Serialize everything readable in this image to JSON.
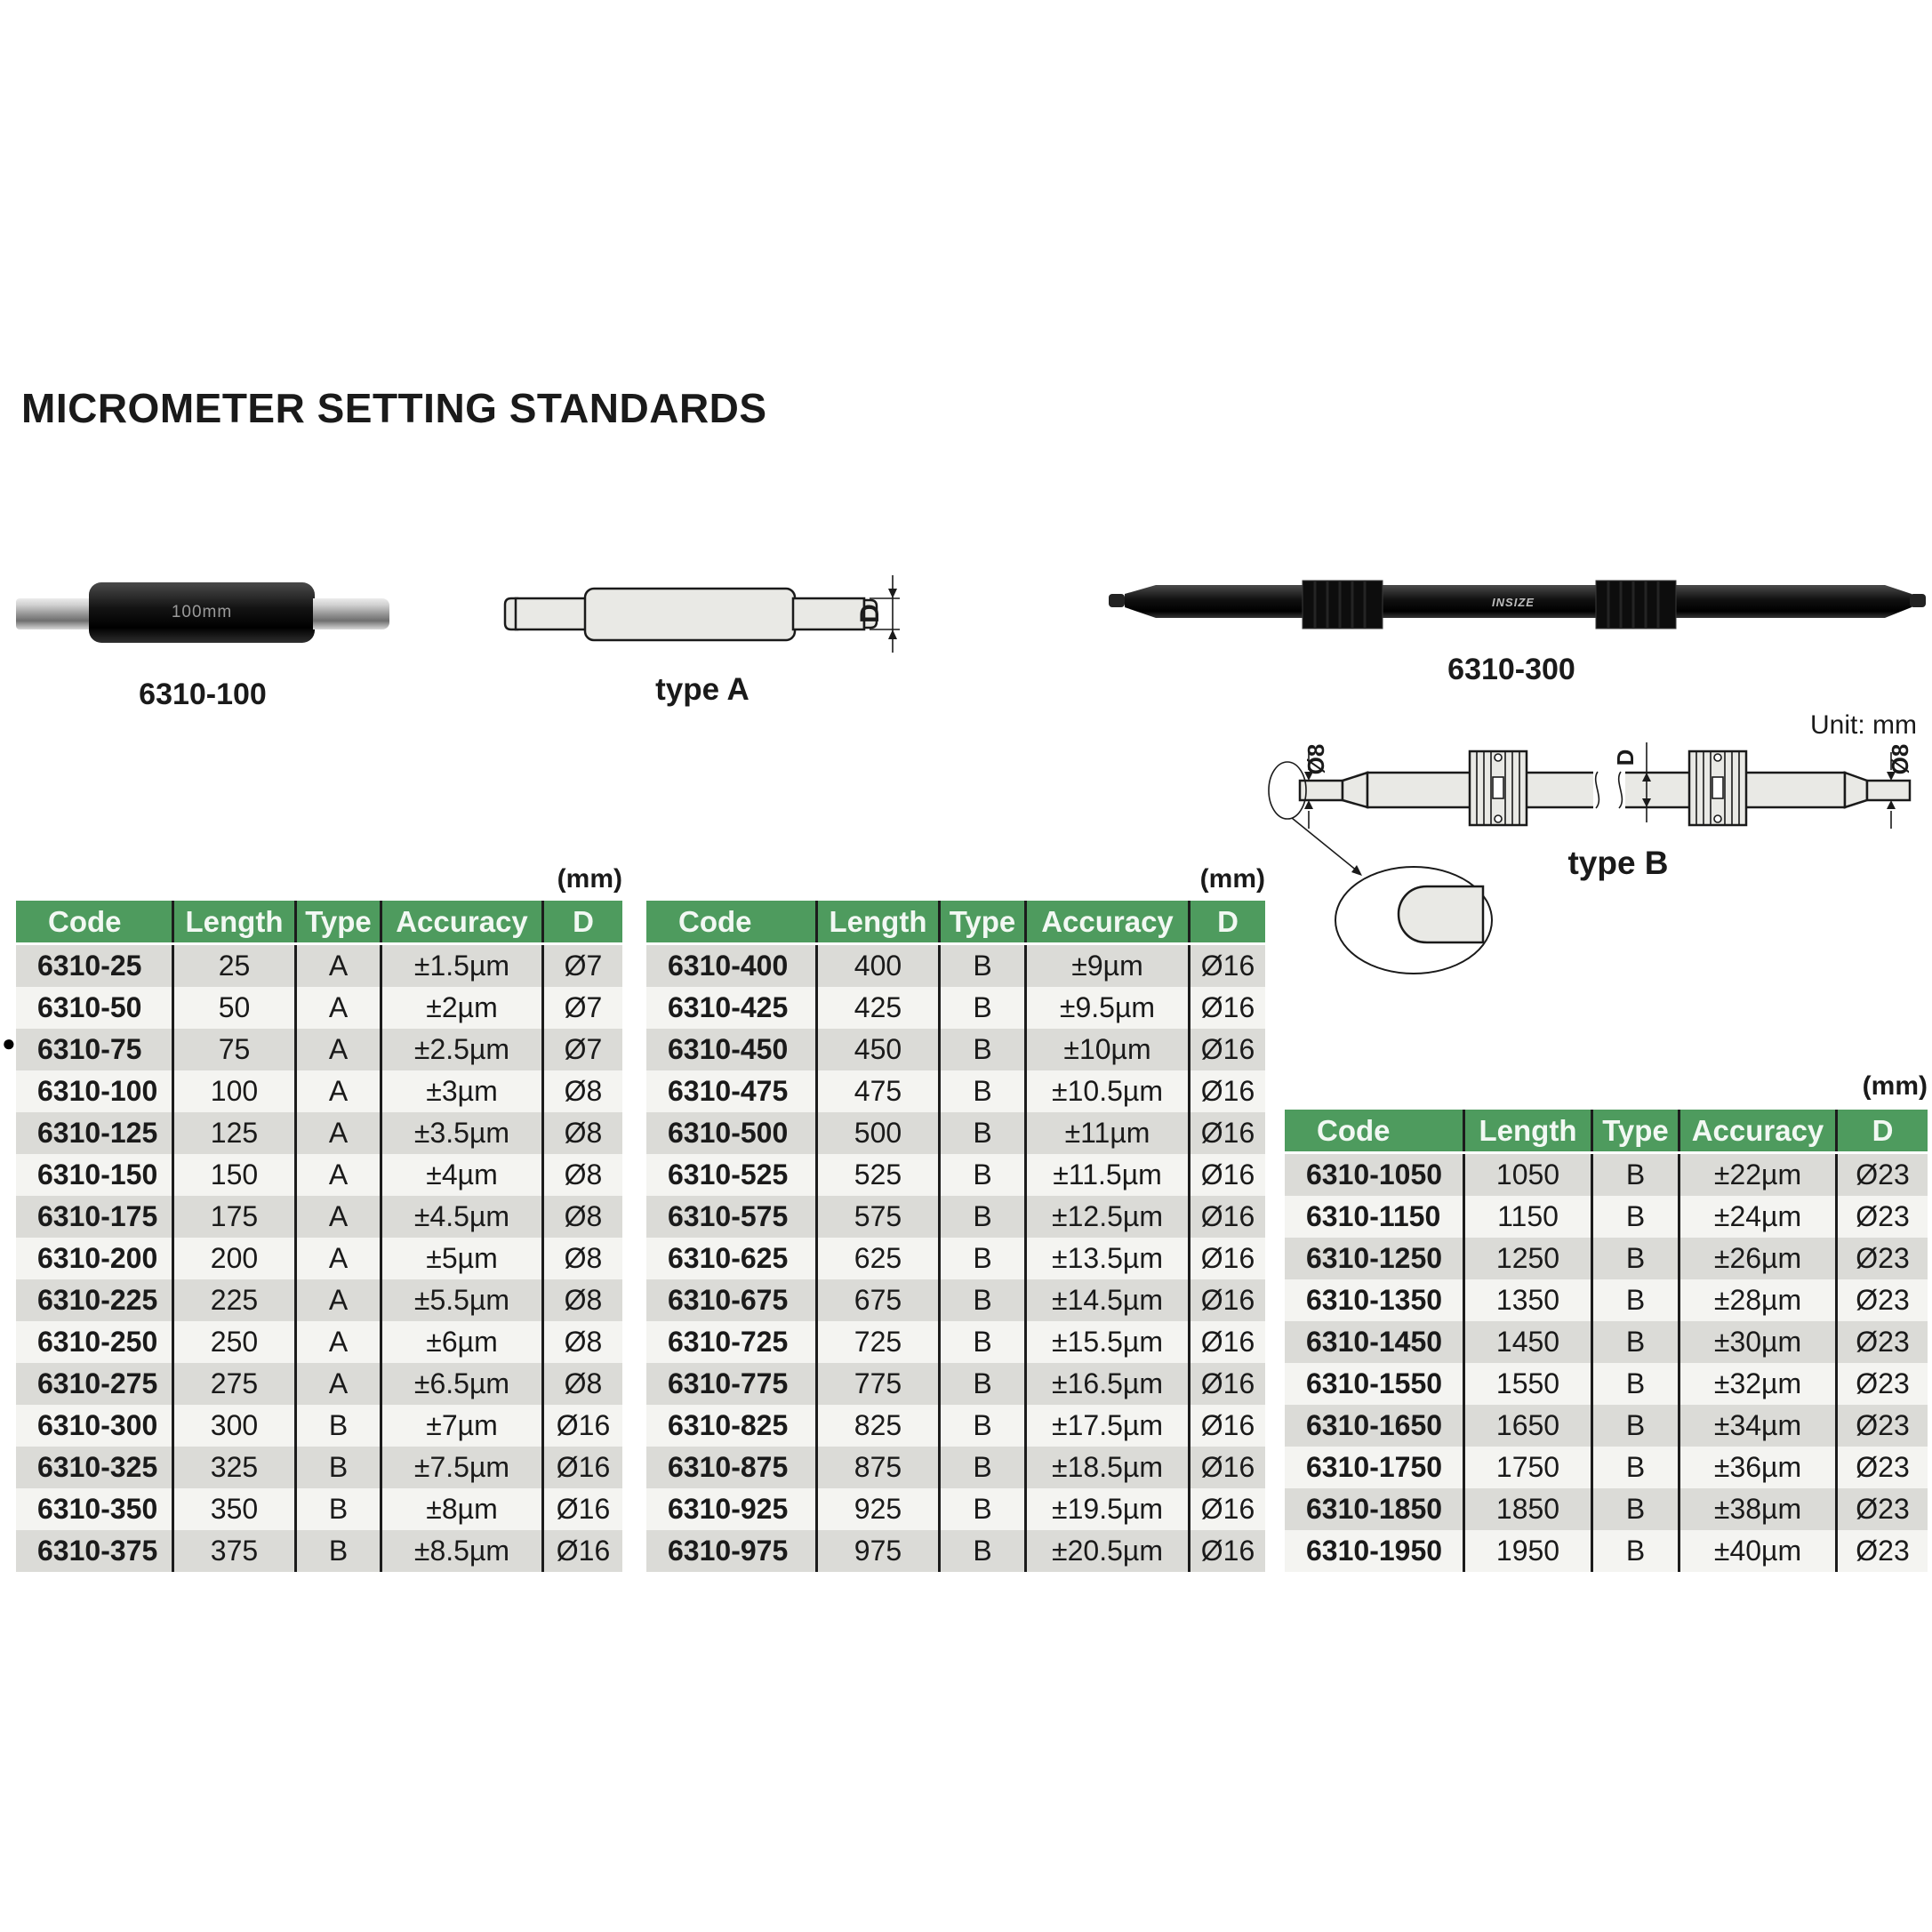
{
  "page": {
    "title": "MICROMETER SETTING STANDARDS",
    "unit_note": "Unit: mm",
    "marker": "●"
  },
  "figures": {
    "product_6310_100": {
      "label": "6310-100",
      "engraving": "100mm"
    },
    "type_a": {
      "label": "type A",
      "dim_d": "D"
    },
    "product_6310_300": {
      "label": "6310-300",
      "brand": "INSIZE"
    },
    "type_b": {
      "label": "type B",
      "dim_d": "D",
      "dim_end_left": "Ø8",
      "dim_end_right": "Ø8"
    }
  },
  "colors": {
    "header_green": "#4e9b5e",
    "row_gray": "#dbdbd7",
    "row_light": "#f4f4f1"
  },
  "tables": [
    {
      "unit": "(mm)",
      "columns": [
        "Code",
        "Length",
        "Type",
        "Accuracy",
        "D"
      ],
      "marked_row_index": 2,
      "rows": [
        [
          "6310-25",
          "25",
          "A",
          "±1.5µm",
          "Ø7"
        ],
        [
          "6310-50",
          "50",
          "A",
          "±2µm",
          "Ø7"
        ],
        [
          "6310-75",
          "75",
          "A",
          "±2.5µm",
          "Ø7"
        ],
        [
          "6310-100",
          "100",
          "A",
          "±3µm",
          "Ø8"
        ],
        [
          "6310-125",
          "125",
          "A",
          "±3.5µm",
          "Ø8"
        ],
        [
          "6310-150",
          "150",
          "A",
          "±4µm",
          "Ø8"
        ],
        [
          "6310-175",
          "175",
          "A",
          "±4.5µm",
          "Ø8"
        ],
        [
          "6310-200",
          "200",
          "A",
          "±5µm",
          "Ø8"
        ],
        [
          "6310-225",
          "225",
          "A",
          "±5.5µm",
          "Ø8"
        ],
        [
          "6310-250",
          "250",
          "A",
          "±6µm",
          "Ø8"
        ],
        [
          "6310-275",
          "275",
          "A",
          "±6.5µm",
          "Ø8"
        ],
        [
          "6310-300",
          "300",
          "B",
          "±7µm",
          "Ø16"
        ],
        [
          "6310-325",
          "325",
          "B",
          "±7.5µm",
          "Ø16"
        ],
        [
          "6310-350",
          "350",
          "B",
          "±8µm",
          "Ø16"
        ],
        [
          "6310-375",
          "375",
          "B",
          "±8.5µm",
          "Ø16"
        ]
      ]
    },
    {
      "unit": "(mm)",
      "columns": [
        "Code",
        "Length",
        "Type",
        "Accuracy",
        "D"
      ],
      "rows": [
        [
          "6310-400",
          "400",
          "B",
          "±9µm",
          "Ø16"
        ],
        [
          "6310-425",
          "425",
          "B",
          "±9.5µm",
          "Ø16"
        ],
        [
          "6310-450",
          "450",
          "B",
          "±10µm",
          "Ø16"
        ],
        [
          "6310-475",
          "475",
          "B",
          "±10.5µm",
          "Ø16"
        ],
        [
          "6310-500",
          "500",
          "B",
          "±11µm",
          "Ø16"
        ],
        [
          "6310-525",
          "525",
          "B",
          "±11.5µm",
          "Ø16"
        ],
        [
          "6310-575",
          "575",
          "B",
          "±12.5µm",
          "Ø16"
        ],
        [
          "6310-625",
          "625",
          "B",
          "±13.5µm",
          "Ø16"
        ],
        [
          "6310-675",
          "675",
          "B",
          "±14.5µm",
          "Ø16"
        ],
        [
          "6310-725",
          "725",
          "B",
          "±15.5µm",
          "Ø16"
        ],
        [
          "6310-775",
          "775",
          "B",
          "±16.5µm",
          "Ø16"
        ],
        [
          "6310-825",
          "825",
          "B",
          "±17.5µm",
          "Ø16"
        ],
        [
          "6310-875",
          "875",
          "B",
          "±18.5µm",
          "Ø16"
        ],
        [
          "6310-925",
          "925",
          "B",
          "±19.5µm",
          "Ø16"
        ],
        [
          "6310-975",
          "975",
          "B",
          "±20.5µm",
          "Ø16"
        ]
      ]
    },
    {
      "unit": "(mm)",
      "columns": [
        "Code",
        "Length",
        "Type",
        "Accuracy",
        "D"
      ],
      "rows": [
        [
          "6310-1050",
          "1050",
          "B",
          "±22µm",
          "Ø23"
        ],
        [
          "6310-1150",
          "1150",
          "B",
          "±24µm",
          "Ø23"
        ],
        [
          "6310-1250",
          "1250",
          "B",
          "±26µm",
          "Ø23"
        ],
        [
          "6310-1350",
          "1350",
          "B",
          "±28µm",
          "Ø23"
        ],
        [
          "6310-1450",
          "1450",
          "B",
          "±30µm",
          "Ø23"
        ],
        [
          "6310-1550",
          "1550",
          "B",
          "±32µm",
          "Ø23"
        ],
        [
          "6310-1650",
          "1650",
          "B",
          "±34µm",
          "Ø23"
        ],
        [
          "6310-1750",
          "1750",
          "B",
          "±36µm",
          "Ø23"
        ],
        [
          "6310-1850",
          "1850",
          "B",
          "±38µm",
          "Ø23"
        ],
        [
          "6310-1950",
          "1950",
          "B",
          "±40µm",
          "Ø23"
        ]
      ]
    }
  ]
}
